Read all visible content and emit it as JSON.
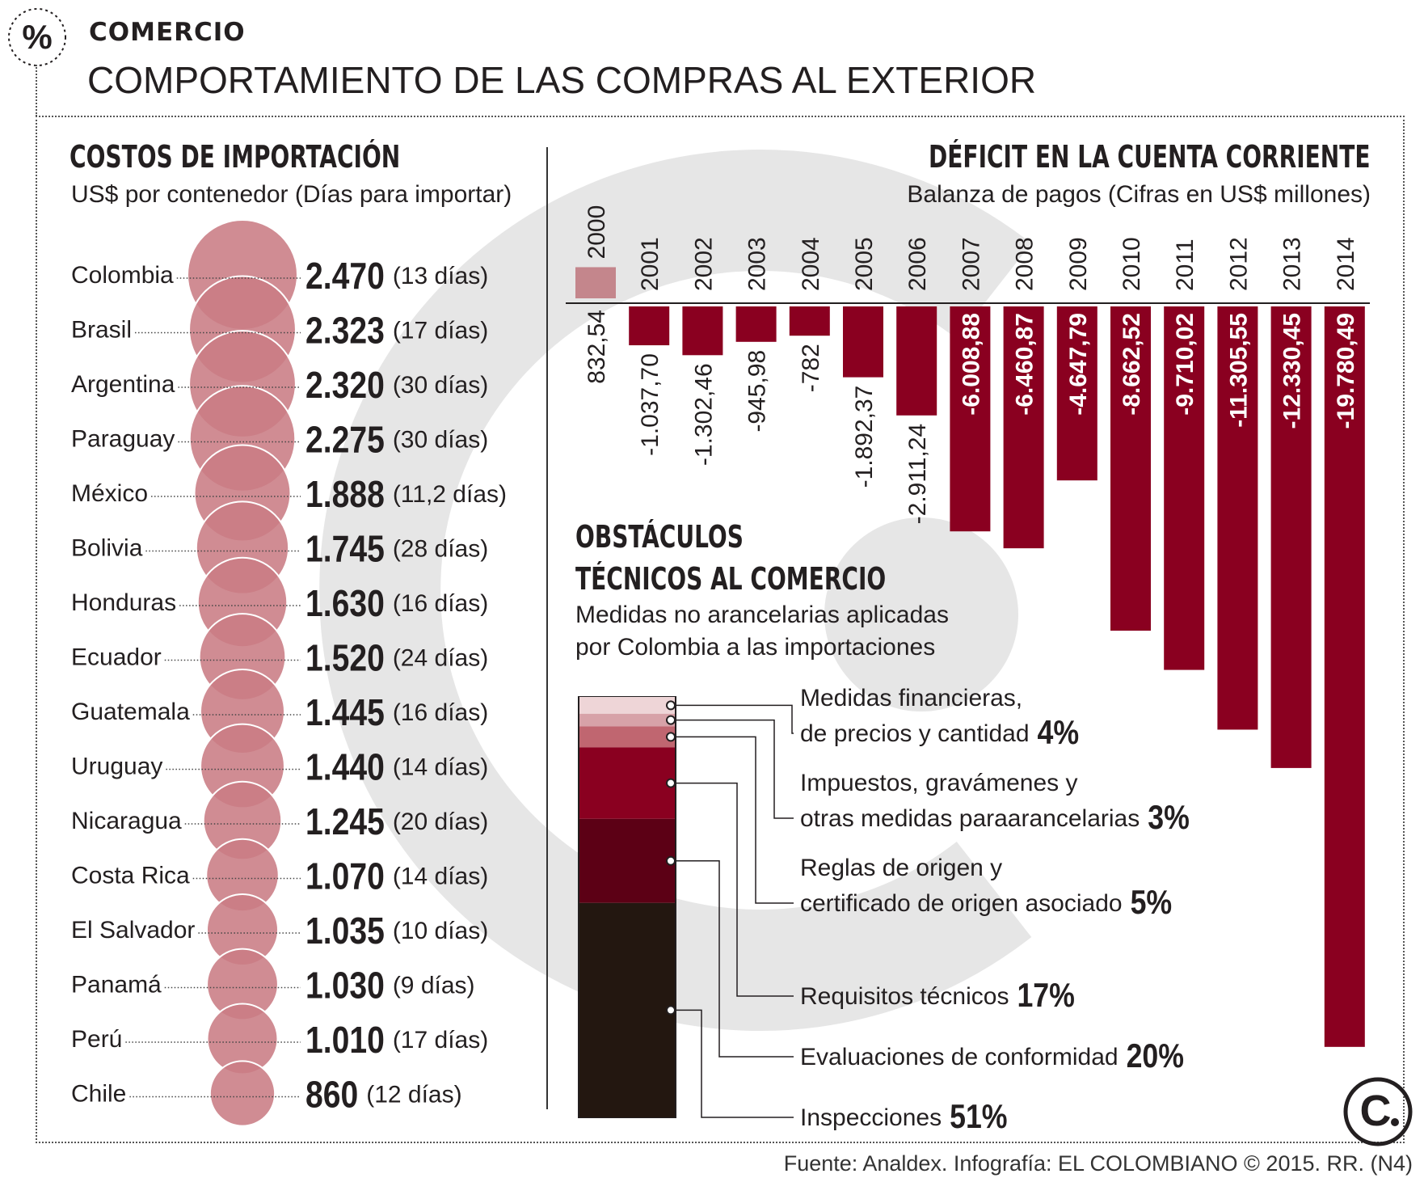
{
  "section_label": "COMERCIO",
  "main_title": "COMPORTAMIENTO DE LAS COMPRAS AL EXTERIOR",
  "source": "Fuente: Analdex. Infografía: EL COLOMBIANO © 2015. RR. (N4)",
  "icons": [
    "percent-icon",
    "el-colombiano-logo-icon"
  ],
  "colors": {
    "bubble": "#c97c84",
    "bar": "#8a0020",
    "bar_pos": "#c4868c",
    "black": "#231f20"
  },
  "chart_data": [
    {
      "type": "bubble",
      "title": "COSTOS DE IMPORTACIÓN",
      "subtitle": "US$ por contenedor (Días para importar)",
      "categories": [
        "Colombia",
        "Brasil",
        "Argentina",
        "Paraguay",
        "México",
        "Bolivia",
        "Honduras",
        "Ecuador",
        "Guatemala",
        "Uruguay",
        "Nicaragua",
        "Costa Rica",
        "El Salvador",
        "Panamá",
        "Perú",
        "Chile"
      ],
      "values": [
        2470,
        2323,
        2320,
        2275,
        1888,
        1745,
        1630,
        1520,
        1445,
        1440,
        1245,
        1070,
        1035,
        1030,
        1010,
        860
      ],
      "value_labels": [
        "2.470",
        "2.323",
        "2.320",
        "2.275",
        "1.888",
        "1.745",
        "1.630",
        "1.520",
        "1.445",
        "1.440",
        "1.245",
        "1.070",
        "1.035",
        "1.030",
        "1.010",
        "860"
      ],
      "days_labels": [
        "(13 días)",
        "(17 días)",
        "(30 días)",
        "(30 días)",
        "(11,2 días)",
        "(28 días)",
        "(16 días)",
        "(24 días)",
        "(16 días)",
        "(14 días)",
        "(20 días)",
        "(14 días)",
        "(10 días)",
        "(9 días)",
        "(17 días)",
        "(12 días)"
      ],
      "days": [
        13,
        17,
        30,
        30,
        11.2,
        28,
        16,
        24,
        16,
        14,
        20,
        14,
        10,
        9,
        17,
        12
      ]
    },
    {
      "type": "bar",
      "title": "DÉFICIT EN LA CUENTA CORRIENTE",
      "subtitle": "Balanza de pagos (Cifras en US$ millones)",
      "categories": [
        "2000",
        "2001",
        "2002",
        "2003",
        "2004",
        "2005",
        "2006",
        "2007",
        "2008",
        "2009",
        "2010",
        "2011",
        "2012",
        "2013",
        "2014"
      ],
      "values": [
        832.54,
        -1037.7,
        -1302.46,
        -945.98,
        -782,
        -1892.37,
        -2911.24,
        -6008.88,
        -6460.87,
        -4647.79,
        -8662.52,
        -9710.02,
        -11305.55,
        -12330.45,
        -19780.49
      ],
      "value_labels": [
        "832,54",
        "-1.037,70",
        "-1.302,46",
        "-945,98",
        "-782",
        "-1.892,37",
        "-2.911,24",
        "-6.008,88",
        "-6.460,87",
        "-4.647,79",
        "-8.662,52",
        "-9.710,02",
        "-11.305,55",
        "-12.330,45",
        "-19.780,49"
      ]
    },
    {
      "type": "stacked-bar",
      "title_line1": "OBSTÁCULOS",
      "title_line2": "TÉCNICOS AL COMERCIO",
      "subtitle_line1": "Medidas no arancelarias aplicadas",
      "subtitle_line2": "por Colombia a las importaciones",
      "segments": [
        {
          "label_line1": "Medidas financieras,",
          "label_line2": "de precios y cantidad",
          "pct_label": "4%",
          "value": 4
        },
        {
          "label_line1": "Impuestos, gravámenes y",
          "label_line2": "otras medidas paraarancelarias",
          "pct_label": "3%",
          "value": 3
        },
        {
          "label_line1": "Reglas de origen y",
          "label_line2": "certificado de origen asociado",
          "pct_label": "5%",
          "value": 5
        },
        {
          "label_line1": "",
          "label_line2": "Requisitos técnicos",
          "pct_label": "17%",
          "value": 17
        },
        {
          "label_line1": "",
          "label_line2": "Evaluaciones de conformidad",
          "pct_label": "20%",
          "value": 20
        },
        {
          "label_line1": "",
          "label_line2": "Inspecciones",
          "pct_label": "51%",
          "value": 51
        }
      ]
    }
  ]
}
